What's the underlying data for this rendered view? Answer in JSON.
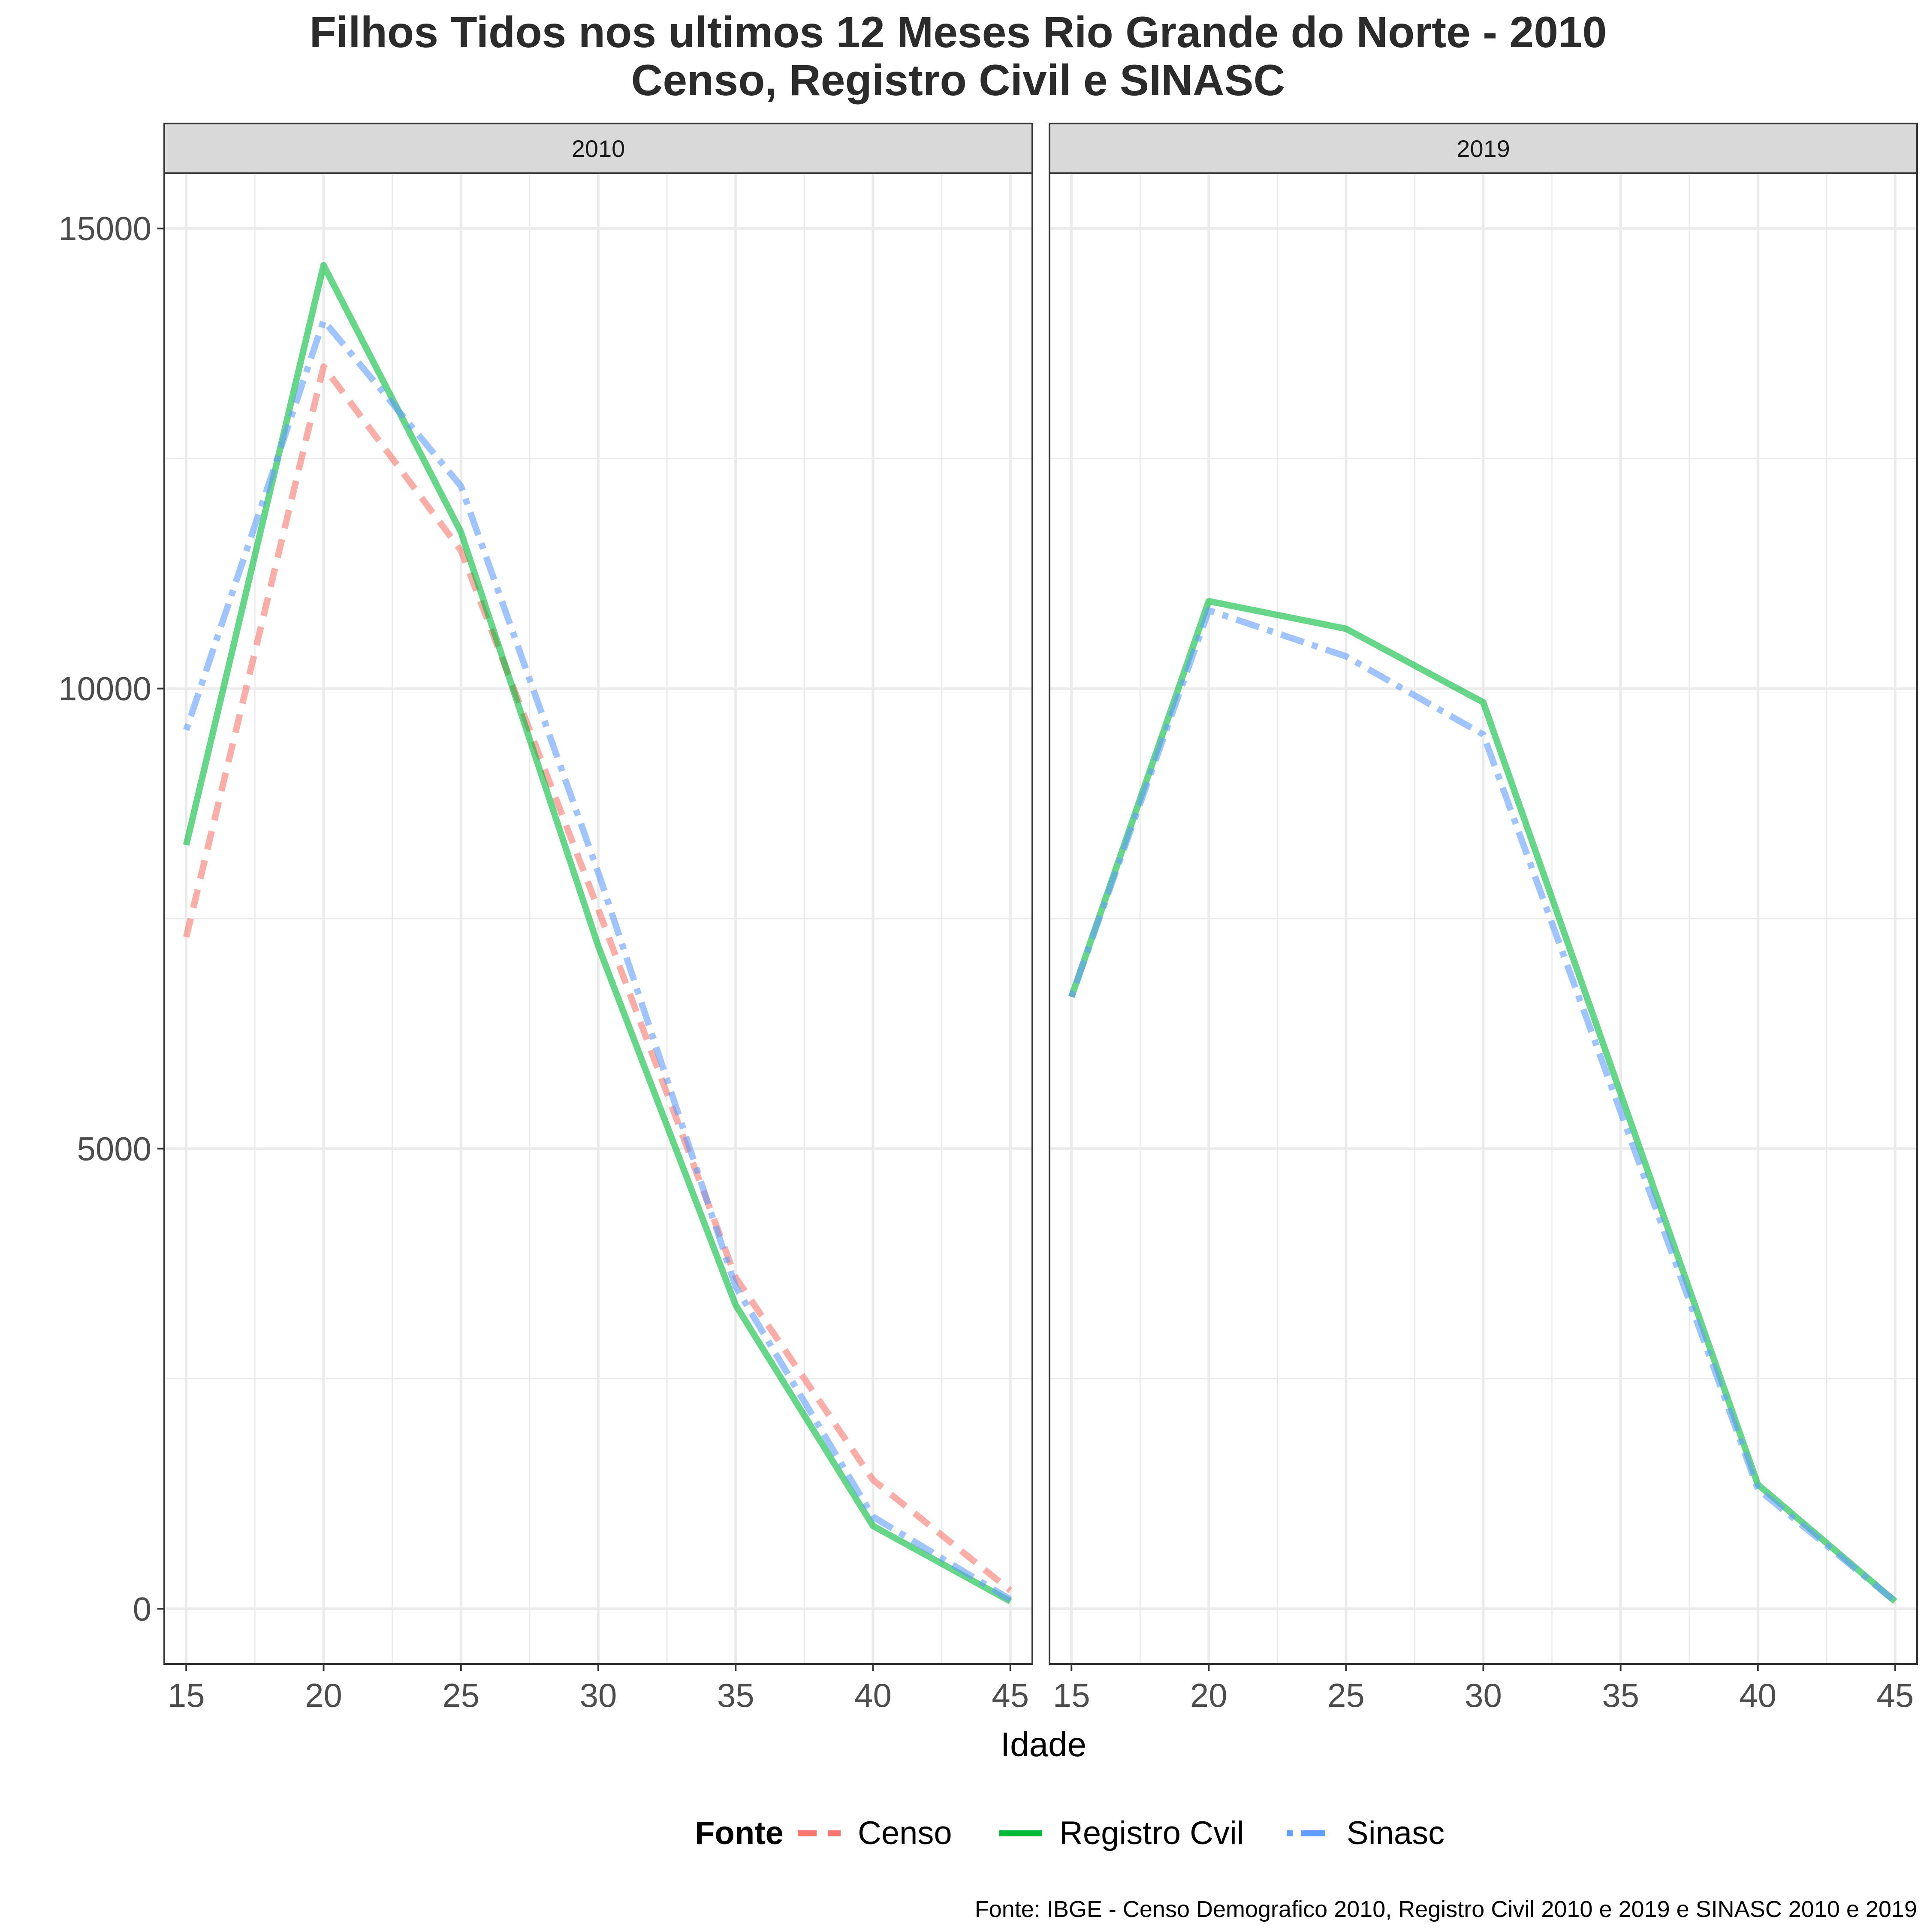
{
  "title": {
    "line1": "Filhos Tidos nos ultimos 12 Meses Rio Grande do Norte - 2010",
    "line2": "Censo, Registro Civil e SINASC"
  },
  "caption": "Fonte: IBGE - Censo Demografico 2010, Registro Civil 2010 e 2019 e SINASC 2010 e 2019",
  "legend": {
    "title": "Fonte",
    "position": "bottom",
    "items": [
      {
        "label": "Censo",
        "color": "#F8766D",
        "dash": "dashed"
      },
      {
        "label": "Registro Cvil",
        "color": "#00BA38",
        "dash": "solid"
      },
      {
        "label": "Sinasc",
        "color": "#619CFF",
        "dash": "dotdash"
      }
    ]
  },
  "colors": {
    "Censo": "#F8766D",
    "Registro Cvil": "#00BA38",
    "Sinasc": "#619CFF",
    "strip_bg": "#D9D9D9",
    "grid": "#EBEBEB"
  },
  "chart_data": {
    "type": "line",
    "xlabel": "Idade",
    "ylabel": "",
    "x": [
      15,
      20,
      25,
      30,
      35,
      40,
      45
    ],
    "xlim": [
      14.2,
      45.8
    ],
    "ylim": [
      -600,
      15600
    ],
    "x_ticks": [
      15,
      20,
      25,
      30,
      35,
      40,
      45
    ],
    "y_ticks": [
      0,
      5000,
      10000,
      15000
    ],
    "y_tick_labels": [
      "0",
      "5000",
      "10000",
      "15000"
    ],
    "grid": true,
    "shared_y": true,
    "panels": [
      {
        "label": "2010",
        "series": [
          {
            "name": "Censo",
            "values": [
              7300,
              13500,
              11500,
              7600,
              3600,
              1400,
              200
            ]
          },
          {
            "name": "Registro Cvil",
            "values": [
              8300,
              14600,
              11700,
              7200,
              3300,
              900,
              80
            ]
          },
          {
            "name": "Sinasc",
            "values": [
              9550,
              14000,
              12200,
              8000,
              3500,
              1000,
              100
            ]
          }
        ]
      },
      {
        "label": "2019",
        "series": [
          {
            "name": "Registro Cvil",
            "values": [
              6650,
              10950,
              10650,
              9850,
              5600,
              1350,
              80
            ]
          },
          {
            "name": "Sinasc",
            "values": [
              6650,
              10850,
              10350,
              9500,
              5400,
              1300,
              80
            ]
          }
        ]
      }
    ]
  }
}
